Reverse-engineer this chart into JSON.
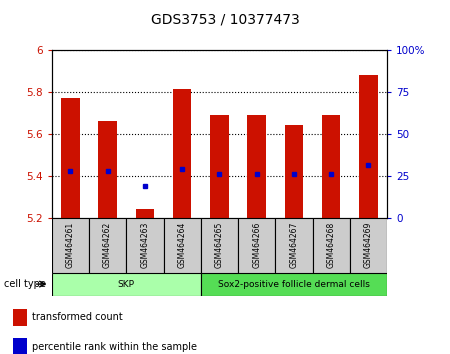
{
  "title": "GDS3753 / 10377473",
  "samples": [
    "GSM464261",
    "GSM464262",
    "GSM464263",
    "GSM464264",
    "GSM464265",
    "GSM464266",
    "GSM464267",
    "GSM464268",
    "GSM464269"
  ],
  "transformed_count": [
    5.77,
    5.66,
    5.24,
    5.81,
    5.69,
    5.69,
    5.64,
    5.69,
    5.88
  ],
  "percentile_rank": [
    5.42,
    5.42,
    5.35,
    5.43,
    5.41,
    5.41,
    5.41,
    5.41,
    5.45
  ],
  "ylim_left": [
    5.2,
    6.0
  ],
  "ylim_right": [
    0,
    100
  ],
  "yticks_left": [
    5.2,
    5.4,
    5.6,
    5.8,
    6.0
  ],
  "ytick_labels_left": [
    "5.2",
    "5.4",
    "5.6",
    "5.8",
    "6"
  ],
  "yticks_right": [
    0,
    25,
    50,
    75,
    100
  ],
  "ytick_labels_right": [
    "0",
    "25",
    "50",
    "75",
    "100%"
  ],
  "bar_color": "#CC1100",
  "dot_color": "#0000CC",
  "cell_type_groups": [
    {
      "label": "SKP",
      "start": 0,
      "end": 4,
      "color": "#AAFFAA"
    },
    {
      "label": "Sox2-positive follicle dermal cells",
      "start": 4,
      "end": 9,
      "color": "#55DD55"
    }
  ],
  "cell_type_label": "cell type",
  "legend_items": [
    {
      "color": "#CC1100",
      "label": "transformed count"
    },
    {
      "color": "#0000CC",
      "label": "percentile rank within the sample"
    }
  ],
  "bar_bottom": 5.2,
  "bar_width": 0.5,
  "tick_color_left": "#CC1100",
  "tick_color_right": "#0000CC",
  "title_fontsize": 10,
  "label_box_color": "#CCCCCC"
}
